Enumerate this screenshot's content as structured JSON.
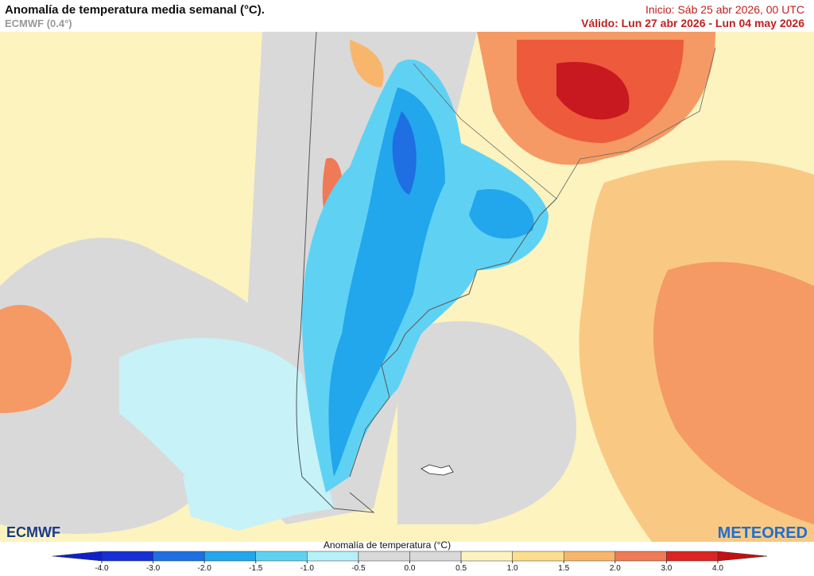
{
  "header": {
    "title": "Anomalía de temperatura media semanal (°C).",
    "model": "ECMWF (0.4°)",
    "start": "Inicio: Sáb 25 abr 2026, 00 UTC",
    "valid": "Válido: Lun 27 abr 2026 - Lun 04 may 2026"
  },
  "logos": {
    "left": "ECMWF",
    "right": "METEORED"
  },
  "colorbar": {
    "title": "Anomalía de temperatura (°C)",
    "ticks": [
      {
        "value": -4,
        "label": "-4.0"
      },
      {
        "value": -3,
        "label": "-3.0"
      },
      {
        "value": -2,
        "label": "-2.0"
      },
      {
        "value": -1.5,
        "label": "-1.5"
      },
      {
        "value": -1,
        "label": "-1.0"
      },
      {
        "value": -0.5,
        "label": "-0.5"
      },
      {
        "value": 0,
        "label": "0.0"
      },
      {
        "value": 0.5,
        "label": "0.5"
      },
      {
        "value": 1,
        "label": "1.0"
      },
      {
        "value": 1.5,
        "label": "1.5"
      },
      {
        "value": 2,
        "label": "2.0"
      },
      {
        "value": 3,
        "label": "3.0"
      },
      {
        "value": 4,
        "label": "4.0"
      }
    ],
    "colors": [
      "#1530d4",
      "#1f6ee2",
      "#22a6ec",
      "#5fd2f4",
      "#b6f0f8",
      "#d9d9d9",
      "#d9d9d9",
      "#fcf3bf",
      "#fbdf8e",
      "#f8b66c",
      "#f07a56",
      "#dc2424"
    ],
    "under_color": "#1020c8",
    "over_color": "#c41010"
  }
}
